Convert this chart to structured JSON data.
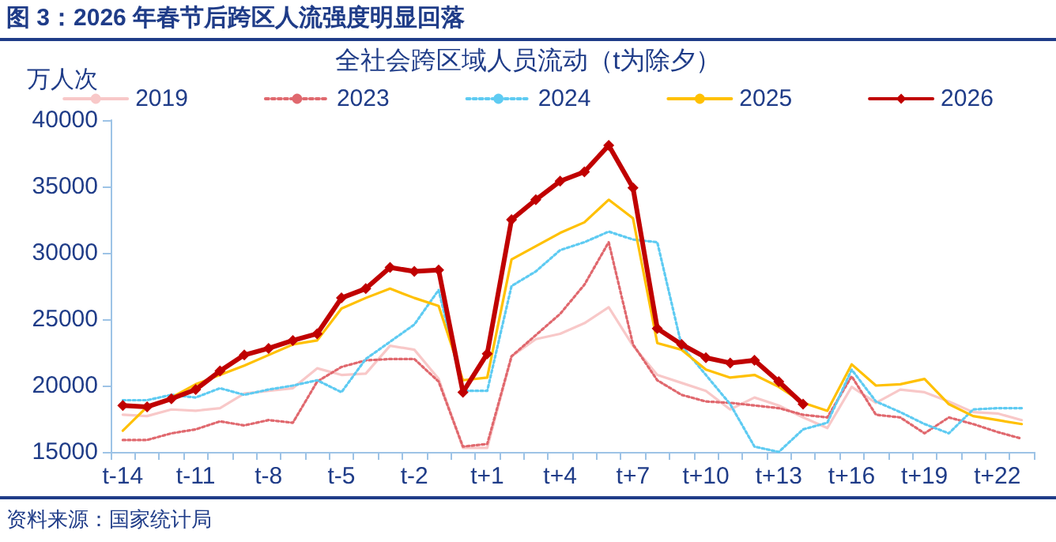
{
  "chart_data": {
    "type": "line",
    "title": "图 3：2026 年春节后跨区人流强度明显回落",
    "subtitle": "全社会跨区域人员流动（t为除夕）",
    "ylabel": "万人次",
    "annotations": [
      "资料来源：国家统计局"
    ],
    "categories": [
      "t-14",
      null,
      null,
      "t-11",
      null,
      null,
      "t-8",
      null,
      null,
      "t-5",
      null,
      null,
      "t-2",
      null,
      null,
      "t+1",
      null,
      null,
      "t+4",
      null,
      null,
      "t+7",
      null,
      null,
      "t+10",
      null,
      null,
      "t+13",
      null,
      null,
      "t+16",
      null,
      null,
      "t+19",
      null,
      null,
      "t+22",
      null
    ],
    "ylim": [
      15000,
      40000
    ],
    "yticks": [
      15000,
      20000,
      25000,
      30000,
      35000,
      40000
    ],
    "grid": false,
    "legend": "top",
    "series": [
      {
        "name": "2019",
        "color": "#f8c8c8",
        "line_style": "solid",
        "marker": "none",
        "values": [
          17800,
          17700,
          18200,
          18100,
          18300,
          19400,
          19600,
          19800,
          21300,
          20800,
          20900,
          23000,
          22700,
          20500,
          15300,
          15300,
          22200,
          23500,
          23900,
          24700,
          25900,
          23000,
          20800,
          20200,
          19600,
          18200,
          19100,
          18500,
          17600,
          16800,
          19900,
          18700,
          19700,
          19500,
          18800,
          18000,
          17900,
          17400
        ]
      },
      {
        "name": "2023",
        "color": "#e0686e",
        "line_style": "dotted",
        "marker": "none",
        "values": [
          15900,
          15900,
          16400,
          16700,
          17300,
          17000,
          17400,
          17200,
          20300,
          21400,
          21900,
          22000,
          22000,
          20300,
          15400,
          15600,
          22200,
          23800,
          25400,
          27600,
          30800,
          23100,
          20400,
          19300,
          18800,
          18700,
          18500,
          18300,
          17800,
          17600,
          20700,
          17800,
          17600,
          16400,
          17600,
          17100,
          16500,
          16000
        ]
      },
      {
        "name": "2024",
        "color": "#5ecbf2",
        "line_style": "dotted",
        "marker": "none",
        "values": [
          18900,
          18900,
          19300,
          19100,
          19800,
          19300,
          19700,
          20000,
          20400,
          19500,
          22000,
          23300,
          24600,
          27200,
          19600,
          19600,
          27500,
          28600,
          30200,
          30800,
          31600,
          31000,
          30800,
          23000,
          20800,
          18600,
          15400,
          15000,
          16700,
          17200,
          21200,
          18800,
          18000,
          17100,
          16400,
          18200,
          18300,
          18300
        ]
      },
      {
        "name": "2025",
        "color": "#ffc000",
        "line_style": "solid",
        "marker": "none",
        "values": [
          16600,
          18400,
          19100,
          20100,
          20800,
          21500,
          22300,
          23100,
          23400,
          25800,
          26600,
          27300,
          26600,
          26000,
          20400,
          20600,
          29500,
          30500,
          31500,
          32300,
          34000,
          32600,
          23200,
          22700,
          21200,
          20600,
          20800,
          19900,
          18700,
          18100,
          21600,
          20000,
          20100,
          20500,
          18600,
          17700,
          17400,
          17100
        ]
      },
      {
        "name": "2026",
        "color": "#c00000",
        "line_style": "solid",
        "marker": "diamond",
        "values": [
          18500,
          18400,
          19000,
          19700,
          21100,
          22300,
          22800,
          23400,
          23900,
          26600,
          27300,
          28900,
          28600,
          28700,
          19500,
          22400,
          32500,
          34000,
          35400,
          36100,
          38100,
          34900,
          24300,
          23100,
          22100,
          21700,
          21900,
          20300,
          18600,
          null,
          null,
          null,
          null,
          null,
          null,
          null,
          null,
          null
        ]
      }
    ]
  }
}
